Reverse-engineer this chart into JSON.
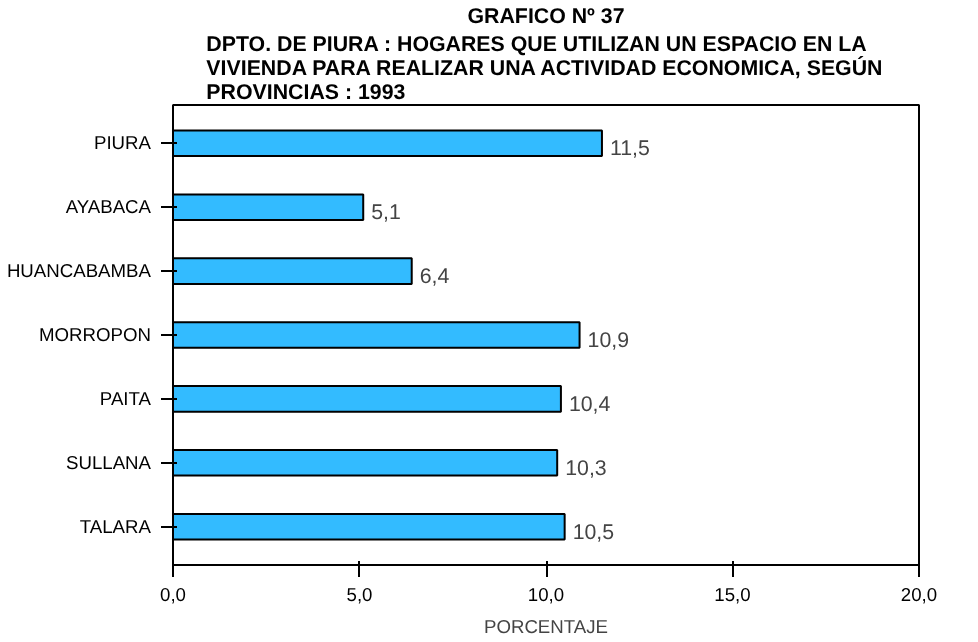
{
  "chart_data": {
    "type": "bar",
    "orientation": "horizontal",
    "title": "GRAFICO Nº 37",
    "subtitle": "DPTO. DE PIURA : HOGARES QUE UTILIZAN UN ESPACIO EN LA\nVIVIENDA PARA REALIZAR UNA ACTIVIDAD ECONOMICA, SEGÚN\nPROVINCIAS : 1993",
    "xlabel": "PORCENTAJE",
    "categories": [
      "PIURA",
      "AYABACA",
      "HUANCABAMBA",
      "MORROPON",
      "PAITA",
      "SULLANA",
      "TALARA"
    ],
    "values": [
      11.5,
      5.1,
      6.4,
      10.9,
      10.4,
      10.3,
      10.5
    ],
    "value_labels": [
      "11,5",
      "5,1",
      "6,4",
      "10,9",
      "10,4",
      "10,3",
      "10,5"
    ],
    "color": "#33bbff",
    "xlim": [
      0,
      20
    ],
    "xticks": [
      {
        "value": 0,
        "label": "0,0"
      },
      {
        "value": 5,
        "label": "5,0"
      },
      {
        "value": 10,
        "label": "10,0"
      },
      {
        "value": 15,
        "label": "15,0"
      },
      {
        "value": 20,
        "label": "20,0"
      }
    ],
    "grid": false
  }
}
